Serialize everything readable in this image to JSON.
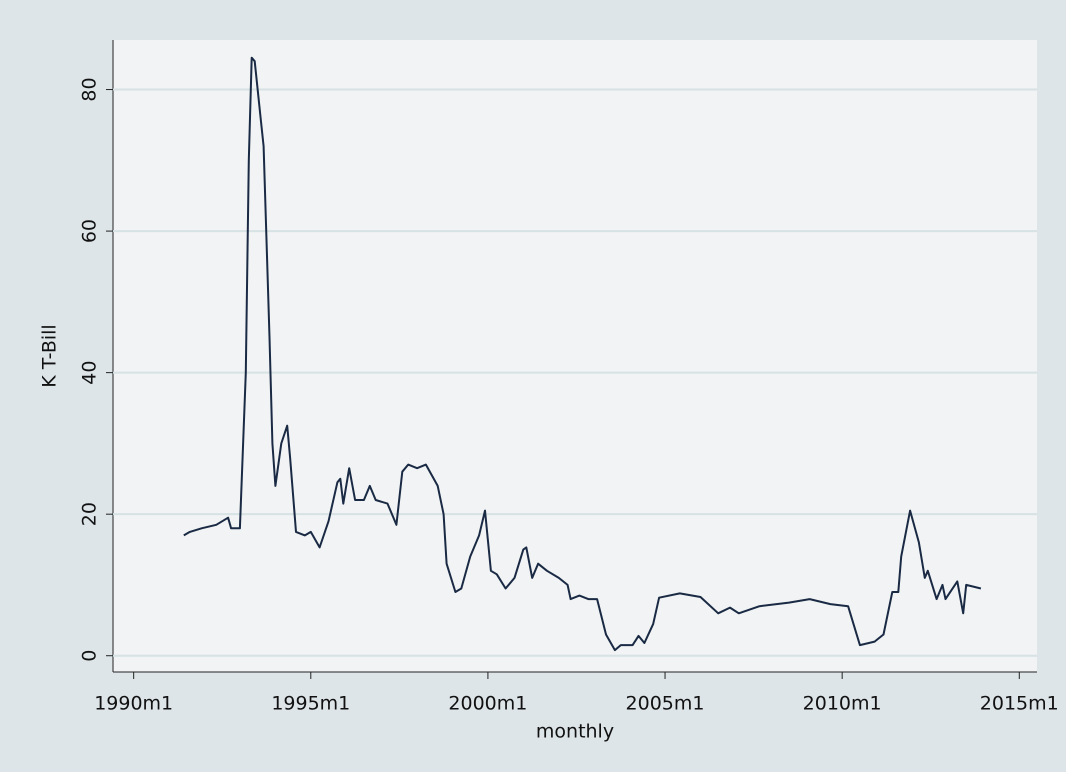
{
  "chart_data": {
    "type": "line",
    "y_label": "K T-Bill",
    "x_label": "monthly",
    "x": [
      "1991m6",
      "1991m8",
      "1991m12",
      "1992m5",
      "1992m9",
      "1992m10",
      "1993m1",
      "1993m3",
      "1993m4",
      "1993m5",
      "1993m6",
      "1993m8",
      "1993m9",
      "1993m11",
      "1993m12",
      "1994m1",
      "1994m3",
      "1994m5",
      "1994m6",
      "1994m8",
      "1994m11",
      "1995m1",
      "1995m4",
      "1995m7",
      "1995m10",
      "1995m11",
      "1995m12",
      "1996m2",
      "1996m4",
      "1996m7",
      "1996m9",
      "1996m11",
      "1997m3",
      "1997m6",
      "1997m8",
      "1997m10",
      "1998m1",
      "1998m4",
      "1998m8",
      "1998m10",
      "1998m11",
      "1999m2",
      "1999m4",
      "1999m7",
      "1999m10",
      "1999m12",
      "2000m2",
      "2000m4",
      "2000m7",
      "2000m10",
      "2001m1",
      "2001m2",
      "2001m4",
      "2001m6",
      "2001m9",
      "2002m1",
      "2002m4",
      "2002m5",
      "2002m8",
      "2002m11",
      "2003m2",
      "2003m5",
      "2003m8",
      "2003m10",
      "2004m2",
      "2004m4",
      "2004m6",
      "2004m9",
      "2004m11",
      "2005m6",
      "2006m1",
      "2006m7",
      "2006m11",
      "2007m2",
      "2007m9",
      "2008m7",
      "2009m2",
      "2009m9",
      "2010m3",
      "2010m7",
      "2010m12",
      "2011m3",
      "2011m6",
      "2011m8",
      "2011m9",
      "2011m12",
      "2012m3",
      "2012m5",
      "2012m6",
      "2012m9",
      "2012m11",
      "2012m12",
      "2013m4",
      "2013m6",
      "2013m7",
      "2013m12"
    ],
    "series": [
      {
        "name": "K T-Bill",
        "color": "#1a2a44",
        "values": [
          17,
          17.5,
          18,
          18.5,
          19.5,
          18,
          18,
          40,
          70,
          84.5,
          84,
          76,
          72,
          45,
          30,
          24,
          30,
          32.5,
          28,
          17.5,
          17,
          17.5,
          15.3,
          19,
          24.5,
          25,
          21.5,
          26.5,
          22,
          22,
          24,
          22,
          21.5,
          18.5,
          26,
          27,
          26.5,
          27,
          24,
          20,
          13,
          9,
          9.5,
          14,
          17,
          20.5,
          12,
          11.5,
          9.5,
          11,
          15,
          15.3,
          11,
          13,
          12,
          11,
          10,
          8,
          8.5,
          8,
          8,
          3,
          0.8,
          1.5,
          1.5,
          2.8,
          1.8,
          4.5,
          8.2,
          8.8,
          8.3,
          6,
          6.8,
          6,
          7,
          7.5,
          8,
          7.3,
          7,
          1.5,
          2,
          3,
          9,
          9,
          14,
          20.5,
          16,
          11,
          12,
          8,
          10,
          8,
          10.5,
          6,
          10,
          9.5
        ]
      }
    ],
    "xlim": [
      "1989m6",
      "2015m7"
    ],
    "xticks": [
      "1990m1",
      "1995m1",
      "2000m1",
      "2005m1",
      "2010m1",
      "2015m1"
    ],
    "ylim": [
      -2.3,
      87
    ],
    "yticks": [
      0,
      20,
      40,
      60,
      80
    ],
    "grid": true
  }
}
